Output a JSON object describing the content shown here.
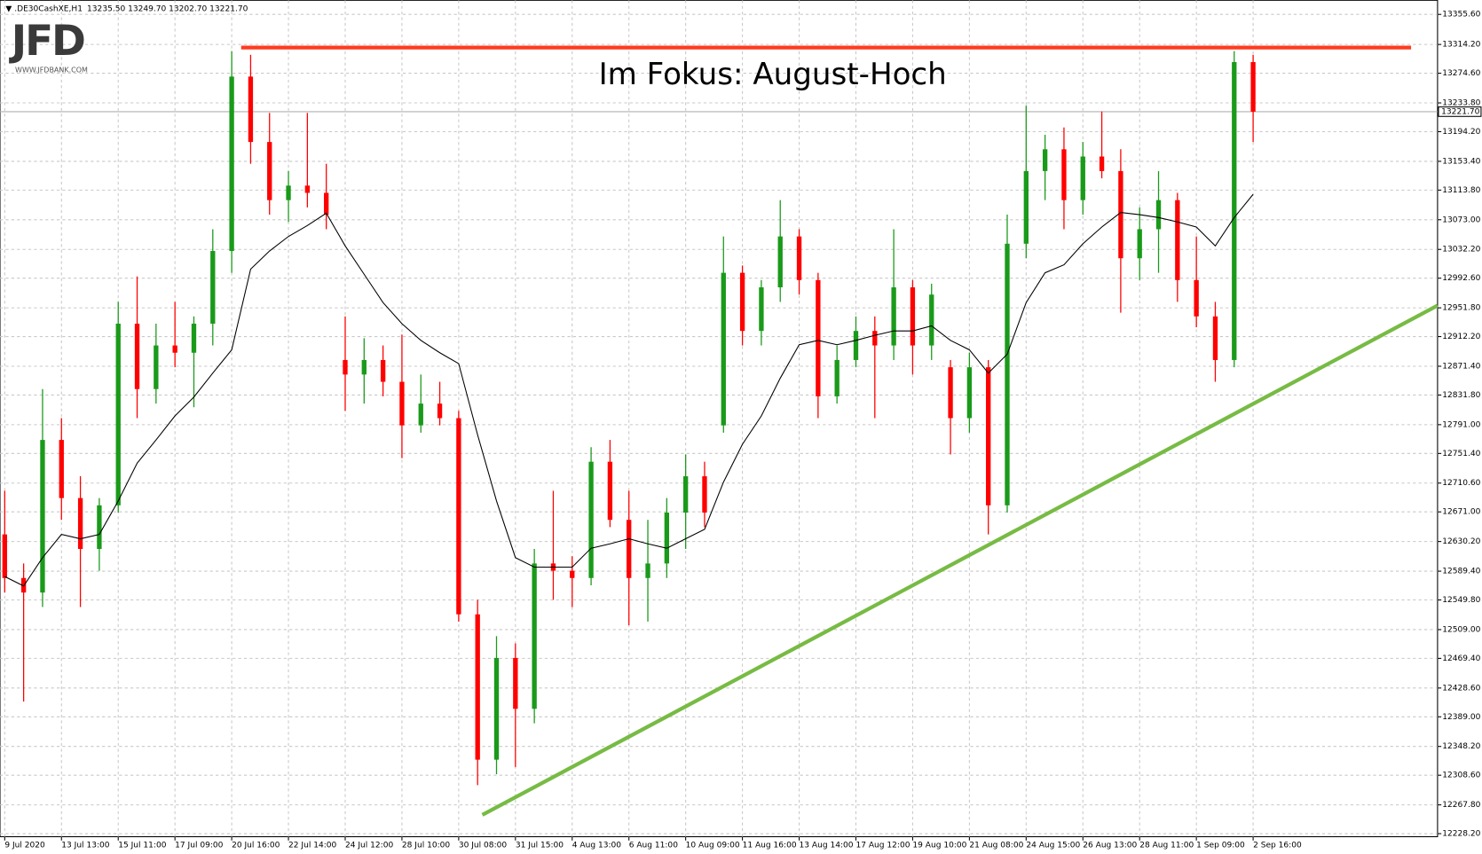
{
  "chart_data": {
    "type": "candlestick",
    "header": {
      "symbol": "▼ .DE30CashXE,H1",
      "ohlc": "13235.50 13249.70 13202.70 13221.70"
    },
    "logo": "JFD",
    "logo_url": "WWW.JFDBANK.COM",
    "title": "Im Fokus: August-Hoch",
    "up_color": "#1a9a1a",
    "down_color": "#ff0000",
    "grid": true,
    "open": [
      12640,
      12580,
      12560,
      12770,
      12690,
      12620,
      12680,
      12930,
      12840,
      12900,
      12890,
      12930,
      13030,
      13270,
      13180,
      13100,
      13120,
      13110,
      12880,
      12860,
      12880,
      12850,
      12790,
      12820,
      12800,
      12530,
      12330,
      12470,
      12400,
      12600,
      12590,
      12580,
      12740,
      12660,
      12580,
      12600,
      12670,
      12720,
      12790,
      13000,
      12920,
      12980,
      13050,
      12990,
      12830,
      12880,
      12920,
      12900,
      12980,
      12900,
      12870,
      12800,
      12870,
      12680,
      13040,
      13140,
      13170,
      13100,
      13160,
      13140,
      13020,
      13060,
      13100,
      12990,
      12940,
      12880,
      13290
    ],
    "high": [
      12700,
      12600,
      12840,
      12800,
      12720,
      12690,
      12960,
      12995,
      12930,
      12960,
      12940,
      13060,
      13305,
      13300,
      13220,
      13140,
      13220,
      13150,
      12940,
      12910,
      12900,
      12915,
      12860,
      12850,
      12810,
      12550,
      12500,
      12490,
      12620,
      12700,
      12610,
      12760,
      12770,
      12700,
      12660,
      12690,
      12750,
      12740,
      13050,
      13010,
      12990,
      13100,
      13060,
      13000,
      12900,
      12940,
      12940,
      13060,
      12990,
      12985,
      12880,
      12890,
      12880,
      13080,
      13230,
      13190,
      13200,
      13180,
      13222,
      13170,
      13090,
      13140,
      13110,
      13050,
      12960,
      13305,
      13300
    ],
    "low": [
      12560,
      12410,
      12540,
      12660,
      12540,
      12590,
      12670,
      12800,
      12820,
      12870,
      12815,
      12900,
      13000,
      13150,
      13080,
      13070,
      13090,
      13060,
      12810,
      12820,
      12830,
      12745,
      12780,
      12790,
      12520,
      12295,
      12310,
      12320,
      12380,
      12550,
      12540,
      12570,
      12650,
      12515,
      12520,
      12580,
      12620,
      12650,
      12780,
      12900,
      12900,
      12960,
      12970,
      12800,
      12820,
      12870,
      12800,
      12880,
      12860,
      12880,
      12750,
      12780,
      12640,
      12670,
      13020,
      13100,
      13060,
      13080,
      13130,
      12945,
      12990,
      13000,
      12960,
      12925,
      12850,
      12870,
      13180
    ],
    "close": [
      12580,
      12560,
      12770,
      12690,
      12620,
      12680,
      12930,
      12840,
      12900,
      12890,
      12930,
      13030,
      13270,
      13180,
      13100,
      13120,
      13110,
      13080,
      12860,
      12880,
      12850,
      12790,
      12820,
      12800,
      12530,
      12330,
      12470,
      12400,
      12600,
      12590,
      12580,
      12740,
      12660,
      12580,
      12600,
      12670,
      12720,
      12670,
      13000,
      12920,
      12980,
      13050,
      12990,
      12830,
      12880,
      12920,
      12900,
      12980,
      12900,
      12970,
      12800,
      12870,
      12680,
      13040,
      13140,
      13170,
      13100,
      13160,
      13140,
      13020,
      13060,
      13100,
      12990,
      12940,
      12880,
      13290,
      13221.7
    ],
    "ma": {
      "color": "#000000",
      "values": [
        12582,
        12569,
        12608,
        12640,
        12634,
        12640,
        12686,
        12738,
        12770,
        12803,
        12829,
        12862,
        12894,
        13005,
        13030,
        13050,
        13065,
        13082,
        13037,
        12998,
        12959,
        12930,
        12907,
        12890,
        12875,
        12777,
        12686,
        12608,
        12595,
        12595,
        12595,
        12621,
        12627,
        12634,
        12627,
        12621,
        12634,
        12647,
        12712,
        12764,
        12803,
        12855,
        12901,
        12907,
        12901,
        12907,
        12914,
        12920,
        12920,
        12927,
        12907,
        12894,
        12862,
        12888,
        12959,
        13000,
        13011,
        13040,
        13063,
        13083,
        13080,
        13076,
        13070,
        13063,
        13037,
        13076,
        13108
      ]
    },
    "hline": {
      "x": [
        12.5,
        74.35
      ],
      "value": 13310,
      "color": "#ff3b1f"
    },
    "trendline": {
      "x": [
        25.25,
        75.75
      ],
      "y": [
        12254,
        12955
      ],
      "color": "#77bb44"
    },
    "last_price": {
      "value": 13221.7,
      "label": "13221.70"
    },
    "xlim": [
      -0.25,
      75.75
    ],
    "ylim": [
      12224,
      13375
    ],
    "xticks": [
      {
        "value": 0,
        "label": "9 Jul 2020"
      },
      {
        "value": 3,
        "label": "13 Jul 13:00"
      },
      {
        "value": 6,
        "label": "15 Jul 11:00"
      },
      {
        "value": 9,
        "label": "17 Jul 09:00"
      },
      {
        "value": 12,
        "label": "20 Jul 16:00"
      },
      {
        "value": 15,
        "label": "22 Jul 14:00"
      },
      {
        "value": 18,
        "label": "24 Jul 12:00"
      },
      {
        "value": 21,
        "label": "28 Jul 10:00"
      },
      {
        "value": 24,
        "label": "30 Jul 08:00"
      },
      {
        "value": 27,
        "label": "31 Jul 15:00"
      },
      {
        "value": 30,
        "label": "4 Aug 13:00"
      },
      {
        "value": 33,
        "label": "6 Aug 11:00"
      },
      {
        "value": 36,
        "label": "10 Aug 09:00"
      },
      {
        "value": 39,
        "label": "11 Aug 16:00"
      },
      {
        "value": 42,
        "label": "13 Aug 14:00"
      },
      {
        "value": 45,
        "label": "17 Aug 12:00"
      },
      {
        "value": 48,
        "label": "19 Aug 10:00"
      },
      {
        "value": 51,
        "label": "21 Aug 08:00"
      },
      {
        "value": 54,
        "label": "24 Aug 15:00"
      },
      {
        "value": 57,
        "label": "26 Aug 13:00"
      },
      {
        "value": 60,
        "label": "28 Aug 11:00"
      },
      {
        "value": 63,
        "label": "1 Sep 09:00"
      },
      {
        "value": 66,
        "label": "2 Sep 16:00"
      }
    ],
    "yticks": [
      {
        "value": 13355.6,
        "label": "13355.60"
      },
      {
        "value": 13314.2,
        "label": "13314.20"
      },
      {
        "value": 13274.6,
        "label": "13274.60"
      },
      {
        "value": 13233.8,
        "label": "13233.80"
      },
      {
        "value": 13194.2,
        "label": "13194.20"
      },
      {
        "value": 13153.4,
        "label": "13153.40"
      },
      {
        "value": 13113.8,
        "label": "13113.80"
      },
      {
        "value": 13073,
        "label": "13073.00"
      },
      {
        "value": 13032.2,
        "label": "13032.20"
      },
      {
        "value": 12992.6,
        "label": "12992.60"
      },
      {
        "value": 12951.8,
        "label": "12951.80"
      },
      {
        "value": 12912.2,
        "label": "12912.20"
      },
      {
        "value": 12871.4,
        "label": "12871.40"
      },
      {
        "value": 12831.8,
        "label": "12831.80"
      },
      {
        "value": 12791,
        "label": "12791.00"
      },
      {
        "value": 12751.4,
        "label": "12751.40"
      },
      {
        "value": 12710.6,
        "label": "12710.60"
      },
      {
        "value": 12671,
        "label": "12671.00"
      },
      {
        "value": 12630.2,
        "label": "12630.20"
      },
      {
        "value": 12589.4,
        "label": "12589.40"
      },
      {
        "value": 12549.8,
        "label": "12549.80"
      },
      {
        "value": 12509,
        "label": "12509.00"
      },
      {
        "value": 12469.4,
        "label": "12469.40"
      },
      {
        "value": 12428.6,
        "label": "12428.60"
      },
      {
        "value": 12389,
        "label": "12389.00"
      },
      {
        "value": 12348.2,
        "label": "12348.20"
      },
      {
        "value": 12308.6,
        "label": "12308.60"
      },
      {
        "value": 12267.8,
        "label": "12267.80"
      },
      {
        "value": 12228.2,
        "label": "12228.20"
      }
    ]
  }
}
